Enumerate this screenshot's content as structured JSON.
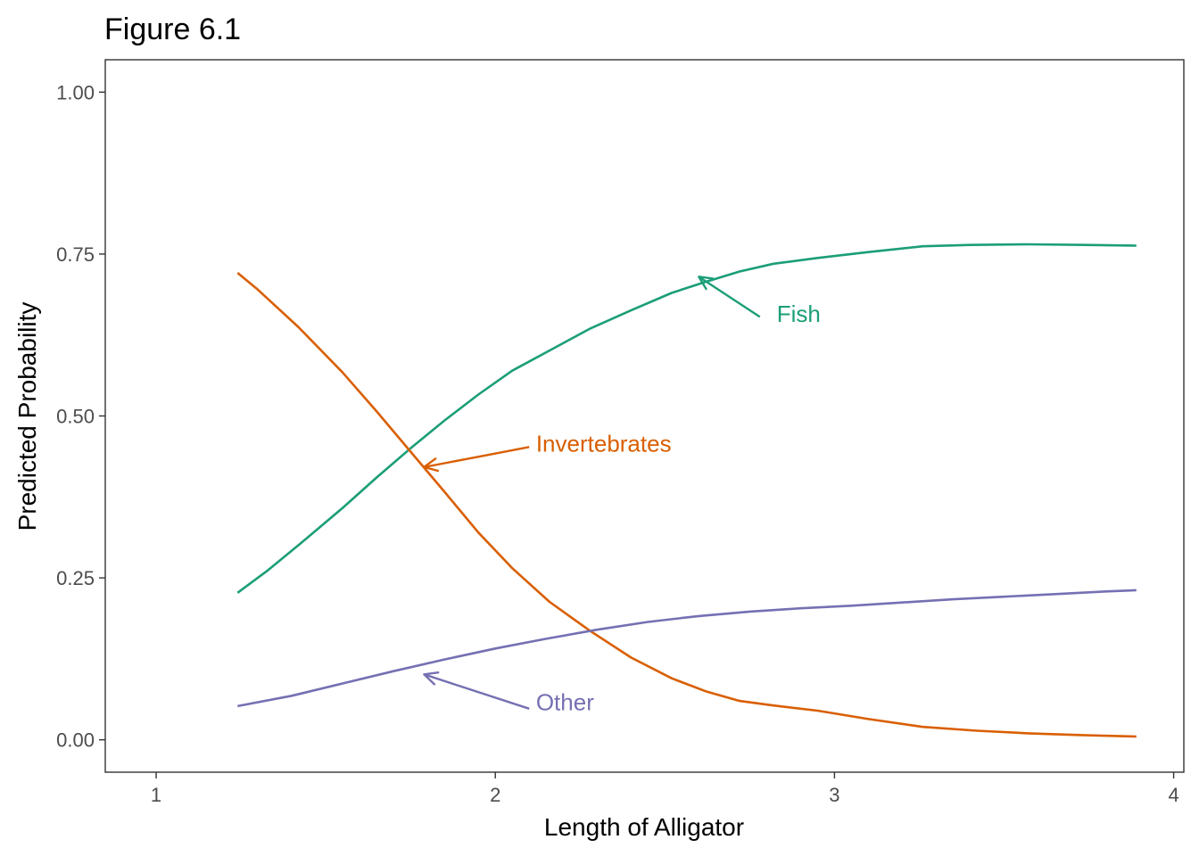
{
  "chart_data": {
    "type": "line",
    "title": "Figure 6.1",
    "xlabel": "Length of Alligator",
    "ylabel": "Predicted Probability",
    "xlim": [
      0.85,
      4.03
    ],
    "ylim": [
      -0.05,
      1.05
    ],
    "x_ticks": [
      1,
      2,
      3,
      4
    ],
    "x_tick_labels": [
      "1",
      "2",
      "3",
      "4"
    ],
    "y_ticks": [
      0,
      0.25,
      0.5,
      0.75,
      1
    ],
    "y_tick_labels": [
      "0.00",
      "0.25",
      "0.50",
      "0.75",
      "1.00"
    ],
    "grid": false,
    "legend": "none",
    "series": [
      {
        "name": "Fish",
        "color": "#1b9e77",
        "points": [
          [
            1.24,
            0.227
          ],
          [
            1.33,
            0.262
          ],
          [
            1.43,
            0.305
          ],
          [
            1.55,
            0.358
          ],
          [
            1.65,
            0.405
          ],
          [
            1.75,
            0.45
          ],
          [
            1.85,
            0.493
          ],
          [
            1.95,
            0.533
          ],
          [
            2.05,
            0.57
          ],
          [
            2.16,
            0.601
          ],
          [
            2.28,
            0.635
          ],
          [
            2.4,
            0.663
          ],
          [
            2.52,
            0.69
          ],
          [
            2.62,
            0.707
          ],
          [
            2.72,
            0.723
          ],
          [
            2.82,
            0.735
          ],
          [
            2.95,
            0.744
          ],
          [
            3.1,
            0.753
          ],
          [
            3.26,
            0.762
          ],
          [
            3.4,
            0.764
          ],
          [
            3.57,
            0.765
          ],
          [
            3.74,
            0.764
          ],
          [
            3.89,
            0.763
          ]
        ]
      },
      {
        "name": "Invertebrates",
        "color": "#d95f02",
        "points": [
          [
            1.24,
            0.721
          ],
          [
            1.3,
            0.695
          ],
          [
            1.42,
            0.637
          ],
          [
            1.55,
            0.567
          ],
          [
            1.65,
            0.507
          ],
          [
            1.75,
            0.445
          ],
          [
            1.85,
            0.383
          ],
          [
            1.95,
            0.32
          ],
          [
            2.05,
            0.265
          ],
          [
            2.16,
            0.213
          ],
          [
            2.28,
            0.168
          ],
          [
            2.4,
            0.127
          ],
          [
            2.52,
            0.095
          ],
          [
            2.62,
            0.075
          ],
          [
            2.72,
            0.06
          ],
          [
            2.82,
            0.053
          ],
          [
            2.95,
            0.045
          ],
          [
            3.1,
            0.032
          ],
          [
            3.26,
            0.02
          ],
          [
            3.42,
            0.014
          ],
          [
            3.57,
            0.01
          ],
          [
            3.74,
            0.007
          ],
          [
            3.89,
            0.005
          ]
        ]
      },
      {
        "name": "Other",
        "color": "#7570b3",
        "points": [
          [
            1.24,
            0.052
          ],
          [
            1.4,
            0.068
          ],
          [
            1.55,
            0.087
          ],
          [
            1.7,
            0.106
          ],
          [
            1.85,
            0.124
          ],
          [
            2.0,
            0.141
          ],
          [
            2.15,
            0.156
          ],
          [
            2.3,
            0.17
          ],
          [
            2.45,
            0.182
          ],
          [
            2.6,
            0.191
          ],
          [
            2.75,
            0.198
          ],
          [
            2.9,
            0.203
          ],
          [
            3.05,
            0.207
          ],
          [
            3.2,
            0.212
          ],
          [
            3.35,
            0.217
          ],
          [
            3.5,
            0.221
          ],
          [
            3.65,
            0.225
          ],
          [
            3.8,
            0.229
          ],
          [
            3.89,
            0.231
          ]
        ]
      }
    ],
    "annotations": [
      {
        "label": "Fish",
        "series": "Fish",
        "text_at": [
          2.83,
          0.645
        ],
        "arrow_from": [
          2.78,
          0.653
        ],
        "arrow_to": [
          2.6,
          0.715
        ]
      },
      {
        "label": "Invertebrates",
        "series": "Invertebrates",
        "text_at": [
          2.12,
          0.445
        ],
        "arrow_from": [
          2.1,
          0.452
        ],
        "arrow_to": [
          1.79,
          0.421
        ]
      },
      {
        "label": "Other",
        "series": "Other",
        "text_at": [
          2.12,
          0.046
        ],
        "arrow_from": [
          2.1,
          0.048
        ],
        "arrow_to": [
          1.79,
          0.101
        ]
      }
    ]
  }
}
